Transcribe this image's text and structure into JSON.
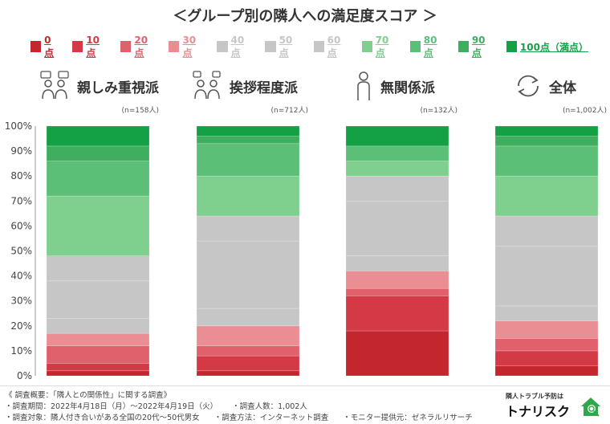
{
  "title": "＜グループ別の隣人への満足度スコア ＞",
  "legend": [
    {
      "label": "0点",
      "color": "#c4262e"
    },
    {
      "label": "10点",
      "color": "#d43a45"
    },
    {
      "label": "20点",
      "color": "#e0616b"
    },
    {
      "label": "30点",
      "color": "#ea8e93"
    },
    {
      "label": "40点",
      "color": "#c6c6c6"
    },
    {
      "label": "50点",
      "color": "#c6c6c6"
    },
    {
      "label": "60点",
      "color": "#c6c6c6"
    },
    {
      "label": "70点",
      "color": "#7fd08f"
    },
    {
      "label": "80点",
      "color": "#5cbf77"
    },
    {
      "label": "90点",
      "color": "#3fae5f"
    },
    {
      "label": "100点（満点）",
      "color": "#14a045"
    }
  ],
  "groups": [
    {
      "name": "親しみ重視派",
      "n": "(n=158人)",
      "icon": "chat-people-icon"
    },
    {
      "name": "挨拶程度派",
      "n": "(n=712人)",
      "icon": "greeting-people-icon"
    },
    {
      "name": "無関係派",
      "n": "(n=132人)",
      "icon": "person-icon"
    },
    {
      "name": "全体",
      "n": "(n=1,002人)",
      "icon": "cycle-arrows-icon"
    }
  ],
  "chart_data": {
    "type": "bar",
    "stacked": true,
    "categories": [
      "親しみ重視派",
      "挨拶程度派",
      "無関係派",
      "全体"
    ],
    "y_ticks": [
      "0%",
      "10%",
      "20%",
      "30%",
      "40%",
      "50%",
      "60%",
      "70%",
      "80%",
      "90%",
      "100%"
    ],
    "ylim": [
      0,
      100
    ],
    "grid": false,
    "series": [
      {
        "name": "0点",
        "color": "#c4262e",
        "values": [
          2,
          2,
          18,
          4
        ]
      },
      {
        "name": "10点",
        "color": "#d43a45",
        "values": [
          3,
          6,
          14,
          6
        ]
      },
      {
        "name": "20点",
        "color": "#e0616b",
        "values": [
          7,
          4,
          3,
          5
        ]
      },
      {
        "name": "30点",
        "color": "#ea8e93",
        "values": [
          5,
          8,
          7,
          7
        ]
      },
      {
        "name": "40点",
        "color": "#c6c6c6",
        "values": [
          6,
          7,
          6,
          6
        ]
      },
      {
        "name": "50点",
        "color": "#c6c6c6",
        "values": [
          15,
          27,
          22,
          24
        ]
      },
      {
        "name": "60点",
        "color": "#c6c6c6",
        "values": [
          10,
          10,
          10,
          12
        ]
      },
      {
        "name": "70点",
        "color": "#7fd08f",
        "values": [
          24,
          16,
          6,
          16
        ]
      },
      {
        "name": "80点",
        "color": "#5cbf77",
        "values": [
          14,
          13,
          6,
          12
        ]
      },
      {
        "name": "90点",
        "color": "#3fae5f",
        "values": [
          6,
          3,
          0,
          4
        ]
      },
      {
        "name": "100点（満点）",
        "color": "#14a045",
        "values": [
          8,
          4,
          8,
          4
        ]
      }
    ]
  },
  "footer": {
    "overview": "《 調査概要：「隣人との関係性」に関する調査》",
    "period": "・調査期間：2022年4月18日（月）～2022年4月19日（火）",
    "count": "・調査人数：1,002人",
    "target": "・調査対象：隣人付き合いがある全国の20代～50代男女",
    "method": "・調査方法：インターネット調査",
    "monitor": "・モニター提供元：ゼネラルリサーチ"
  },
  "brand": {
    "tagline": "隣人トラブル予防は",
    "name": "トナリスク"
  }
}
